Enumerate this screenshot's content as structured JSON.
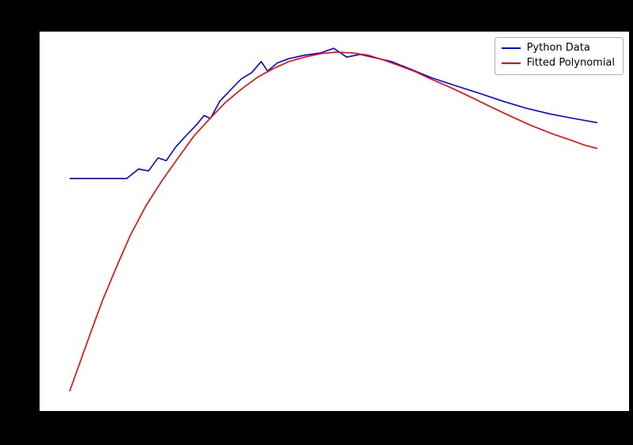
{
  "figure": {
    "background_color": "#000000",
    "plot_background_color": "#ffffff"
  },
  "legend": {
    "position": "upper right",
    "border_color": "#b0b0b0"
  },
  "chart_data": {
    "type": "line",
    "title": "",
    "xlabel": "",
    "ylabel": "",
    "grid": false,
    "legend_position": "upper right",
    "x_range": [
      0,
      100
    ],
    "y_range": [
      0,
      100
    ],
    "series": [
      {
        "name": "Python Data",
        "color": "#0000ff",
        "points": [
          [
            5.1,
            61.3
          ],
          [
            14.8,
            61.3
          ],
          [
            16.8,
            63.8
          ],
          [
            18.5,
            63.3
          ],
          [
            20.1,
            66.7
          ],
          [
            21.5,
            66.0
          ],
          [
            23.1,
            69.6
          ],
          [
            24.8,
            72.5
          ],
          [
            26.6,
            75.4
          ],
          [
            27.9,
            77.9
          ],
          [
            29.0,
            77.1
          ],
          [
            30.6,
            81.7
          ],
          [
            32.5,
            84.8
          ],
          [
            34.2,
            87.5
          ],
          [
            36.0,
            89.2
          ],
          [
            37.6,
            92.1
          ],
          [
            38.7,
            89.6
          ],
          [
            40.3,
            91.7
          ],
          [
            42.3,
            92.9
          ],
          [
            45.0,
            93.8
          ],
          [
            47.7,
            94.4
          ],
          [
            49.9,
            95.6
          ],
          [
            52.1,
            93.3
          ],
          [
            54.4,
            94.0
          ],
          [
            56.4,
            93.3
          ],
          [
            59.7,
            92.1
          ],
          [
            63.1,
            90.0
          ],
          [
            66.4,
            87.9
          ],
          [
            70.5,
            85.8
          ],
          [
            74.5,
            83.8
          ],
          [
            78.5,
            81.7
          ],
          [
            82.6,
            79.8
          ],
          [
            86.6,
            78.3
          ],
          [
            90.6,
            77.1
          ],
          [
            94.6,
            76.0
          ]
        ]
      },
      {
        "name": "Fitted Polynomial",
        "color": "#ff0000",
        "points": [
          [
            5.1,
            5.2
          ],
          [
            6.7,
            12.1
          ],
          [
            8.7,
            20.8
          ],
          [
            10.7,
            29.2
          ],
          [
            13.2,
            38.5
          ],
          [
            15.4,
            46.3
          ],
          [
            18.1,
            54.2
          ],
          [
            20.8,
            60.8
          ],
          [
            23.5,
            66.7
          ],
          [
            26.2,
            72.5
          ],
          [
            28.9,
            77.1
          ],
          [
            31.5,
            81.3
          ],
          [
            34.2,
            84.8
          ],
          [
            36.9,
            87.9
          ],
          [
            39.6,
            90.2
          ],
          [
            42.3,
            92.1
          ],
          [
            45.0,
            93.3
          ],
          [
            47.7,
            94.2
          ],
          [
            50.3,
            94.6
          ],
          [
            53.0,
            94.4
          ],
          [
            55.7,
            93.8
          ],
          [
            58.4,
            92.5
          ],
          [
            61.1,
            91.0
          ],
          [
            63.8,
            89.4
          ],
          [
            66.4,
            87.5
          ],
          [
            69.8,
            85.2
          ],
          [
            73.2,
            82.7
          ],
          [
            76.5,
            80.2
          ],
          [
            79.9,
            77.7
          ],
          [
            83.2,
            75.4
          ],
          [
            86.6,
            73.3
          ],
          [
            89.9,
            71.5
          ],
          [
            92.6,
            70.0
          ],
          [
            94.6,
            69.2
          ]
        ]
      }
    ]
  }
}
